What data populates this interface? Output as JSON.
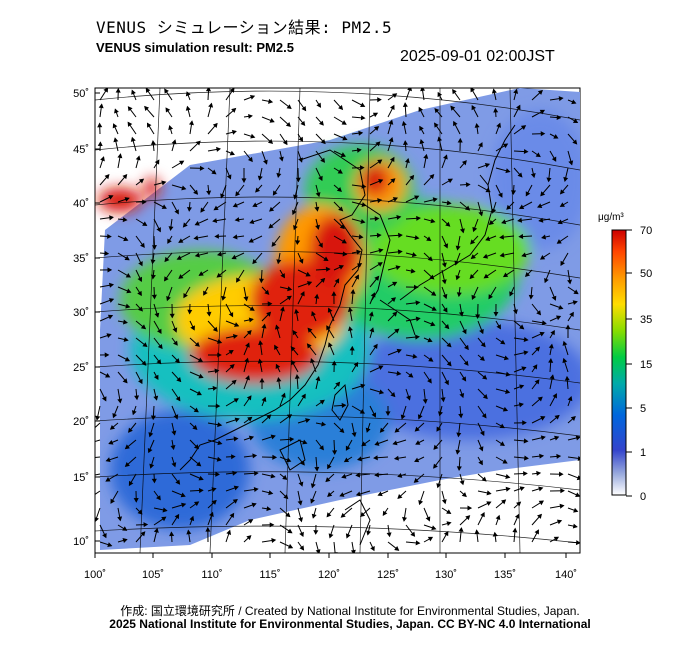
{
  "title_jp": "VENUS シミュレーション結果: PM2.5",
  "title_en": "VENUS simulation result: PM2.5",
  "timestamp": "2025-09-01 02:00JST",
  "lat_ticks": [
    "50˚",
    "45˚",
    "40˚",
    "35˚",
    "30˚",
    "25˚",
    "20˚",
    "15˚",
    "10˚"
  ],
  "lon_ticks": [
    "100˚",
    "105˚",
    "110˚",
    "115˚",
    "120˚",
    "125˚",
    "130˚",
    "135˚",
    "140˚"
  ],
  "colorbar": {
    "unit": "μg/m³",
    "labels": [
      "70",
      "50",
      "35",
      "15",
      "5",
      "1",
      "0"
    ],
    "colors": [
      "#cc0000",
      "#ff4400",
      "#ff9900",
      "#ffdd00",
      "#88dd00",
      "#00cc44",
      "#00aaaa",
      "#0066dd",
      "#3344cc",
      "#99aadd",
      "#ffffff"
    ]
  },
  "credit": "作成: 国立環境研究所 / Created by National Institute for Environmental Studies, Japan.",
  "copyright": "2025 National Institute for Environmental Studies, Japan. CC BY-NC 4.0 International"
}
